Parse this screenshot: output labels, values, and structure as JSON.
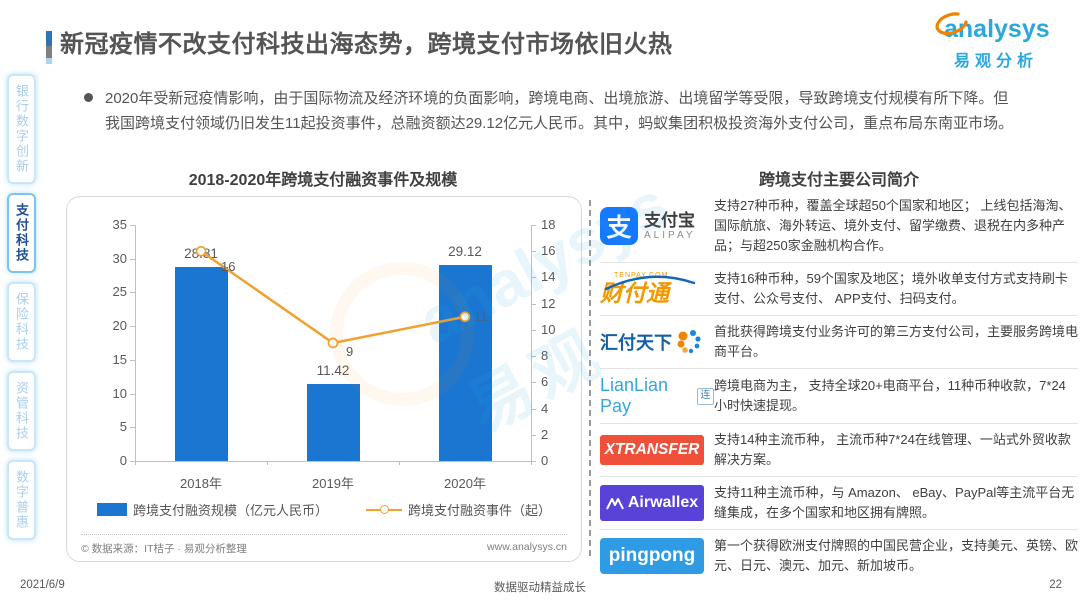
{
  "header": {
    "title": "新冠疫情不改支付科技出海态势，跨境支付市场依旧火热",
    "logo": {
      "brand_en": "analysys",
      "brand_cn": "易观分析"
    }
  },
  "sidebar": {
    "items": [
      {
        "label": "银行数字创新",
        "active": false
      },
      {
        "label": "支付科技",
        "active": true
      },
      {
        "label": "保险科技",
        "active": false
      },
      {
        "label": "资管科技",
        "active": false
      },
      {
        "label": "数字普惠",
        "active": false
      }
    ]
  },
  "summary": {
    "text": "2020年受新冠疫情影响，由于国际物流及经济环境的负面影响，跨境电商、出境旅游、出境留学等受限，导致跨境支付规模有所下降。但我国跨境支付领域仍旧发生11起投资事件，总融资额达29.12亿元人民币。其中，蚂蚁集团积极投资海外支付公司，重点布局东南亚市场。"
  },
  "chart_data": {
    "type": "bar+line",
    "title": "2018-2020年跨境支付融资事件及规模",
    "categories": [
      "2018年",
      "2019年",
      "2020年"
    ],
    "series": [
      {
        "name": "跨境支付融资规模（亿元人民币）",
        "type": "bar",
        "axis": "left",
        "values": [
          28.81,
          11.42,
          29.12
        ],
        "color": "#1B76D2"
      },
      {
        "name": "跨境支付融资事件（起）",
        "type": "line",
        "axis": "right",
        "values": [
          16,
          9,
          11
        ],
        "color": "#F0A12F"
      }
    ],
    "left_axis": {
      "min": 0,
      "max": 35,
      "step": 5
    },
    "right_axis": {
      "min": 0,
      "max": 18,
      "step": 2
    },
    "grid": false,
    "legend_position": "bottom",
    "source_left": "© 数据来源：IT桔子 · 易观分析整理",
    "source_right": "www.analysys.cn"
  },
  "companies": {
    "title": "跨境支付主要公司简介",
    "rows": [
      {
        "name": "支付宝",
        "logo": {
          "mark": "支",
          "cn": "支付宝",
          "en": "ALIPAY"
        },
        "desc": "支持27种币种，覆盖全球超50个国家和地区； 上线包括海淘、国际航旅、海外转运、境外支付、留学缴费、退税在内多种产品；与超250家金融机构合作。"
      },
      {
        "name": "财付通",
        "logo": {
          "text": "财付通",
          "sub": "TENPAY.COM"
        },
        "desc": "支持16种币种，59个国家及地区；境外收单支付方式支持刷卡支付、公众号支付、 APP支付、扫码支付。"
      },
      {
        "name": "汇付天下",
        "logo": {
          "text": "汇付天下"
        },
        "desc": "首批获得跨境支付业务许可的第三方支付公司，主要服务跨境电商平台。"
      },
      {
        "name": "LianLian Pay",
        "logo": {
          "text": "LianLian Pay",
          "badge": "连"
        },
        "desc": "跨境电商为主， 支持全球20+电商平台，11种币种收款，7*24 小时快速提现。"
      },
      {
        "name": "XTRANSFER",
        "logo": {
          "text": "XTRANSFER",
          "bg": "#F0503A"
        },
        "desc": "支持14种主流币种， 主流币种7*24在线管理、一站式外贸收款解决方案。"
      },
      {
        "name": "Airwallex",
        "logo": {
          "text": "Airwallex",
          "bg": "#5842D8"
        },
        "desc": "支持11种主流币种，与 Amazon、 eBay、PayPal等主流平台无缝集成，在多个国家和地区拥有牌照。"
      },
      {
        "name": "pingpong",
        "logo": {
          "text": "pingpong",
          "bg": "#2F9BE4"
        },
        "desc": "第一个获得欧洲支付牌照的中国民营企业，支持美元、英镑、欧元、日元、澳元、加元、新加坡币。"
      }
    ]
  },
  "footer": {
    "date": "2021/6/9",
    "slogan": "数据驱动精益成长",
    "page": "22"
  },
  "watermark": {
    "en": "analysys",
    "cn": "易观"
  },
  "colors": {
    "bar": "#1B76D2",
    "line": "#F0A12F",
    "accent_blue": "#2E74B5",
    "brand_blue": "#2AA7DF",
    "active_tab": "#1F4E99"
  }
}
